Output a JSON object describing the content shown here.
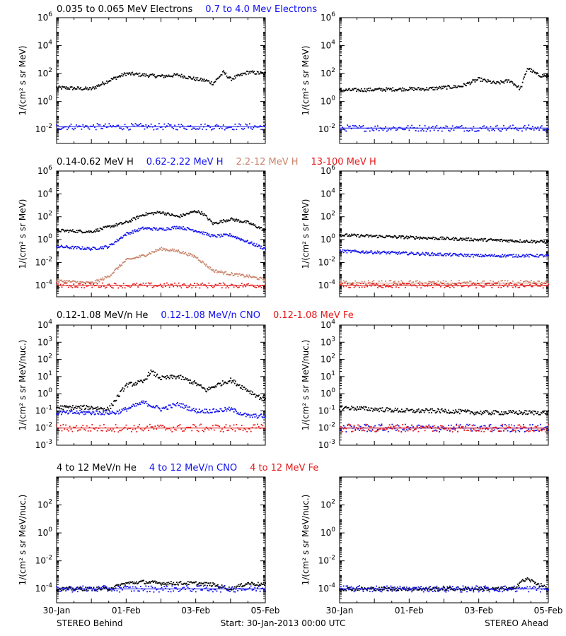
{
  "colors": {
    "black": "#000000",
    "blue": "#1010ee",
    "tan": "#c9846b",
    "red": "#e51a1a"
  },
  "footer": {
    "left": "STEREO Behind",
    "center": "Start: 30-Jan-2013 00:00 UTC",
    "right": "STEREO Ahead"
  },
  "x_tick_labels": [
    "30-Jan",
    "01-Feb",
    "03-Feb",
    "05-Feb"
  ],
  "chart_data": [
    {
      "type": "scatter",
      "row": "electrons",
      "y_scale": "log",
      "ylabel": "1/(cm² s sr MeV)",
      "ylim_exp": [
        -3,
        6
      ],
      "y_ticks_exp": [
        -2,
        0,
        2,
        4,
        6
      ],
      "legend": [
        {
          "text": "0.035 to 0.065 MeV Electrons",
          "color": "black"
        },
        {
          "text": "0.7 to 4.0 Mev Electrons",
          "color": "blue"
        }
      ],
      "panels": [
        {
          "spacecraft": "STEREO Behind",
          "series": [
            {
              "color": "black",
              "x_days": [
                0,
                1,
                1.5,
                2,
                2.5,
                3,
                3.5,
                4,
                4.3,
                4.5,
                4.8,
                5.0,
                5.5,
                6
              ],
              "log10_flux": [
                1.0,
                0.9,
                1.5,
                2.0,
                1.9,
                1.8,
                1.9,
                1.6,
                1.5,
                1.3,
                2.1,
                1.6,
                2.1,
                2.0
              ]
            },
            {
              "color": "blue",
              "x_days": [
                0,
                6
              ],
              "log10_flux": [
                -1.8,
                -1.8
              ]
            }
          ]
        },
        {
          "spacecraft": "STEREO Ahead",
          "series": [
            {
              "color": "black",
              "x_days": [
                0,
                2,
                2.5,
                3,
                3.5,
                4,
                4.5,
                4.9,
                5.2,
                5.4,
                5.7,
                6
              ],
              "log10_flux": [
                0.8,
                0.9,
                0.9,
                1.0,
                1.1,
                1.6,
                1.3,
                1.5,
                0.9,
                2.4,
                1.9,
                1.8
              ]
            },
            {
              "color": "blue",
              "x_days": [
                0,
                6
              ],
              "log10_flux": [
                -1.9,
                -1.9
              ]
            }
          ]
        }
      ]
    },
    {
      "type": "scatter",
      "row": "protons",
      "y_scale": "log",
      "ylabel": "1/(cm² s sr MeV)",
      "ylim_exp": [
        -5,
        6
      ],
      "y_ticks_exp": [
        -4,
        -2,
        0,
        2,
        4,
        6
      ],
      "legend": [
        {
          "text": "0.14-0.62 MeV H",
          "color": "black"
        },
        {
          "text": "0.62-2.22 MeV H",
          "color": "blue"
        },
        {
          "text": "2.2-12 MeV H",
          "color": "tan"
        },
        {
          "text": "13-100 MeV H",
          "color": "red"
        }
      ],
      "panels": [
        {
          "spacecraft": "STEREO Behind",
          "series": [
            {
              "color": "black",
              "x_days": [
                0,
                1,
                1.6,
                2,
                2.5,
                3,
                3.5,
                4,
                4.2,
                4.5,
                5,
                5.5,
                6
              ],
              "log10_flux": [
                0.8,
                0.7,
                1.2,
                1.5,
                2.2,
                2.4,
                2.0,
                2.5,
                2.3,
                1.4,
                1.8,
                1.5,
                0.8
              ]
            },
            {
              "color": "blue",
              "x_days": [
                0,
                1,
                1.5,
                2,
                2.5,
                3,
                3.5,
                4,
                4.2,
                4.5,
                5,
                5.5,
                6
              ],
              "log10_flux": [
                -0.6,
                -0.8,
                -0.6,
                0.5,
                1.0,
                0.9,
                1.1,
                0.8,
                0.6,
                0.3,
                0.4,
                -0.2,
                -0.8
              ]
            },
            {
              "color": "tan",
              "x_days": [
                0,
                1,
                1.2,
                1.5,
                2,
                2.5,
                3,
                3.5,
                4,
                4.5,
                5,
                5.5,
                6
              ],
              "log10_flux": [
                -3.6,
                -3.8,
                -3.6,
                -3.2,
                -1.8,
                -1.4,
                -0.8,
                -1.0,
                -1.5,
                -2.7,
                -3.0,
                -3.2,
                -3.5
              ]
            },
            {
              "color": "red",
              "x_days": [
                0,
                6
              ],
              "log10_flux": [
                -4.0,
                -4.0
              ]
            }
          ]
        },
        {
          "spacecraft": "STEREO Ahead",
          "series": [
            {
              "color": "black",
              "x_days": [
                0,
                1,
                2,
                3,
                4,
                5,
                6
              ],
              "log10_flux": [
                0.4,
                0.3,
                0.2,
                0.1,
                0.0,
                -0.1,
                -0.2
              ]
            },
            {
              "color": "blue",
              "x_days": [
                0,
                1,
                2,
                3,
                4,
                5,
                6
              ],
              "log10_flux": [
                -1.0,
                -1.1,
                -1.2,
                -1.3,
                -1.4,
                -1.4,
                -1.4
              ]
            },
            {
              "color": "tan",
              "x_days": [
                0,
                6
              ],
              "log10_flux": [
                -3.8,
                -3.8
              ]
            },
            {
              "color": "red",
              "x_days": [
                0,
                6
              ],
              "log10_flux": [
                -4.0,
                -4.0
              ]
            }
          ]
        }
      ]
    },
    {
      "type": "scatter",
      "row": "heavy-ions-low",
      "y_scale": "log",
      "ylabel": "1/(cm² s sr MeV/nuc.)",
      "ylim_exp": [
        -3,
        4
      ],
      "y_ticks_exp": [
        -3,
        -2,
        -1,
        0,
        1,
        2,
        3,
        4
      ],
      "legend": [
        {
          "text": "0.12-1.08 MeV/n He",
          "color": "black"
        },
        {
          "text": "0.12-1.08 MeV/n CNO",
          "color": "blue"
        },
        {
          "text": "0.12-1.08 MeV Fe",
          "color": "red"
        }
      ],
      "panels": [
        {
          "spacecraft": "STEREO Behind",
          "series": [
            {
              "color": "black",
              "x_days": [
                0,
                1,
                1.5,
                2,
                2.5,
                2.7,
                3,
                3.5,
                4,
                4.3,
                4.6,
                5,
                5.5,
                6
              ],
              "log10_flux": [
                -0.8,
                -0.8,
                -0.9,
                0.5,
                0.7,
                1.3,
                0.9,
                1.0,
                0.6,
                0.2,
                0.5,
                0.8,
                0.2,
                -0.4
              ]
            },
            {
              "color": "blue",
              "x_days": [
                1.7,
                2,
                2.5,
                3,
                3.5,
                4,
                4.5,
                5,
                5.5
              ],
              "log10_flux": [
                -1.1,
                -0.9,
                -0.5,
                -0.9,
                -0.6,
                -1.0,
                -1.0,
                -0.9,
                -1.3
              ]
            },
            {
              "color": "red",
              "x_days": [
                0,
                6
              ],
              "log10_flux": [
                -2.0,
                -2.0
              ]
            }
          ]
        },
        {
          "spacecraft": "STEREO Ahead",
          "series": [
            {
              "color": "black",
              "x_days": [
                0,
                1,
                2,
                3,
                4,
                5,
                6
              ],
              "log10_flux": [
                -0.8,
                -0.9,
                -1.0,
                -1.0,
                -1.1,
                -1.1,
                -1.1
              ]
            },
            {
              "color": "blue",
              "x_days": [
                0,
                6
              ],
              "log10_flux": [
                -2.0,
                -2.0
              ]
            },
            {
              "color": "red",
              "x_days": [
                0,
                6
              ],
              "log10_flux": [
                -2.0,
                -2.0
              ]
            }
          ]
        }
      ]
    },
    {
      "type": "scatter",
      "row": "heavy-ions-high",
      "y_scale": "log",
      "ylabel": "1/(cm² s sr MeV/nuc.)",
      "ylim_exp": [
        -5,
        4
      ],
      "y_ticks_exp": [
        -4,
        -2,
        0,
        2
      ],
      "legend": [
        {
          "text": "4 to 12 MeV/n He",
          "color": "black"
        },
        {
          "text": "4 to 12 MeV/n CNO",
          "color": "blue"
        },
        {
          "text": "4 to 12 MeV Fe",
          "color": "red"
        }
      ],
      "panels": [
        {
          "spacecraft": "STEREO Behind",
          "series": [
            {
              "color": "black",
              "x_days": [
                0,
                1.5,
                2,
                2.5,
                3,
                3.5,
                4,
                4.5,
                5,
                5.5,
                6
              ],
              "log10_flux": [
                -4.0,
                -4.0,
                -3.6,
                -3.5,
                -3.6,
                -3.6,
                -3.6,
                -3.7,
                -4.0,
                -3.6,
                -3.7
              ]
            },
            {
              "color": "blue",
              "x_days": [
                0,
                6
              ],
              "log10_flux": [
                -4.0,
                -4.0
              ]
            }
          ]
        },
        {
          "spacecraft": "STEREO Ahead",
          "series": [
            {
              "color": "black",
              "x_days": [
                0,
                5,
                5.2,
                5.4,
                6
              ],
              "log10_flux": [
                -4.0,
                -4.0,
                -3.5,
                -3.3,
                -4.0
              ]
            },
            {
              "color": "blue",
              "x_days": [
                0,
                6
              ],
              "log10_flux": [
                -4.0,
                -4.0
              ]
            }
          ]
        }
      ]
    }
  ]
}
